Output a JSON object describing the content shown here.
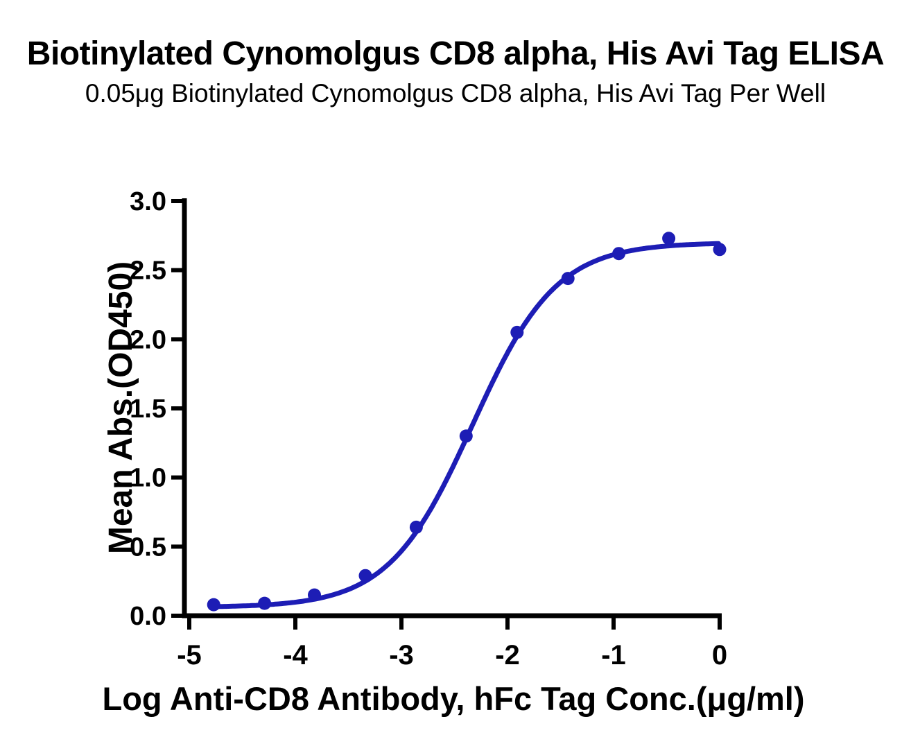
{
  "header": {
    "title": "Biotinylated Cynomolgus CD8 alpha, His Avi Tag ELISA",
    "subtitle": "0.05μg Biotinylated Cynomolgus CD8 alpha, His Avi Tag Per Well"
  },
  "colors": {
    "curve": "#1d1db5",
    "marker": "#1d1db5",
    "axis": "#000000",
    "text": "#000000",
    "background": "#ffffff"
  },
  "chart_data": {
    "type": "scatter",
    "title": "Biotinylated Cynomolgus CD8 alpha, His Avi Tag ELISA",
    "subtitle": "0.05μg Biotinylated Cynomolgus CD8 alpha, His Avi Tag Per Well",
    "xlabel": "Log Anti-CD8 Antibody, hFc Tag Conc.(μg/ml)",
    "ylabel": "Mean Abs.(OD450)",
    "xlim": [
      -5.05,
      0.02
    ],
    "ylim": [
      0,
      3.02
    ],
    "x_ticks": [
      -5,
      -4,
      -3,
      -2,
      -1,
      0
    ],
    "x_tick_labels": [
      "-5",
      "-4",
      "-3",
      "-2",
      "-1",
      "0"
    ],
    "y_ticks": [
      0,
      0.5,
      1,
      1.5,
      2,
      2.5,
      3
    ],
    "y_tick_labels": [
      "0.0",
      "0.5",
      "1.0",
      "1.5",
      "2.0",
      "2.5",
      "3.0"
    ],
    "grid": false,
    "legend": "none",
    "series": [
      {
        "name": "Anti-CD8 Antibody, hFc Tag",
        "points": [
          {
            "x": -4.77,
            "y": 0.08
          },
          {
            "x": -4.29,
            "y": 0.09
          },
          {
            "x": -3.82,
            "y": 0.15
          },
          {
            "x": -3.34,
            "y": 0.29
          },
          {
            "x": -2.86,
            "y": 0.64
          },
          {
            "x": -2.39,
            "y": 1.3
          },
          {
            "x": -1.91,
            "y": 2.05
          },
          {
            "x": -1.43,
            "y": 2.44
          },
          {
            "x": -0.95,
            "y": 2.62
          },
          {
            "x": -0.48,
            "y": 2.73
          },
          {
            "x": 0.0,
            "y": 2.65
          }
        ]
      }
    ],
    "fit_curve": {
      "model": "4PL",
      "bottom": 0.06,
      "top": 2.7,
      "log_ec50": -2.33,
      "hill": 1.1,
      "x_start": -4.77,
      "x_end": 0.0
    }
  }
}
